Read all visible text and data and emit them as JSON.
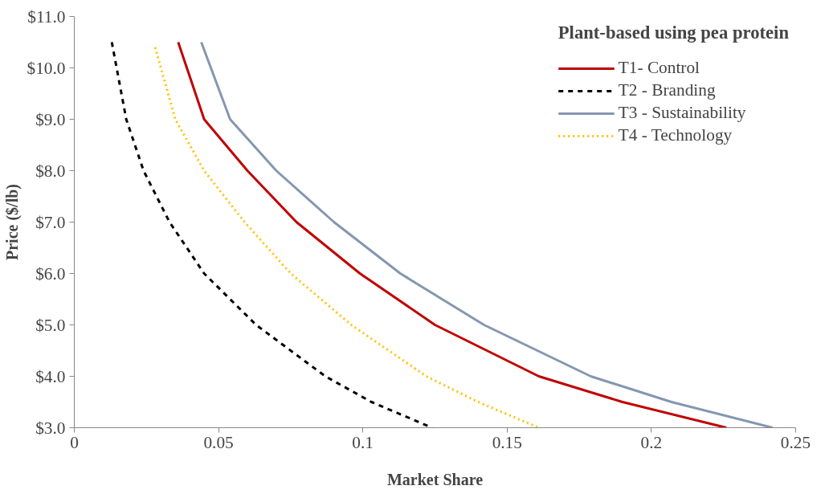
{
  "chart_data": {
    "type": "line",
    "legend_title": "Plant-based using pea protein",
    "xlabel": "Market Share",
    "ylabel": "Price ($/lb)",
    "xlim": [
      0,
      0.25
    ],
    "xticks": [
      0,
      0.05,
      0.1,
      0.15,
      0.2,
      0.25
    ],
    "ylim": [
      3,
      11
    ],
    "yticks": [
      {
        "value": 3,
        "label": "$3.0"
      },
      {
        "value": 4,
        "label": "$4.0"
      },
      {
        "value": 5,
        "label": "$5.0"
      },
      {
        "value": 6,
        "label": "$6.0"
      },
      {
        "value": 7,
        "label": "$7.0"
      },
      {
        "value": 8,
        "label": "$8.0"
      },
      {
        "value": 9,
        "label": "$9.0"
      },
      {
        "value": 10,
        "label": "$10.0"
      },
      {
        "value": 11,
        "label": "$11.0"
      }
    ],
    "grid": false,
    "legend": "top right",
    "marker": "none",
    "series": [
      {
        "name": "T1- Control",
        "color": "#c00000",
        "line_style": "solid",
        "x": [
          0.036,
          0.045,
          0.06,
          0.077,
          0.099,
          0.125,
          0.161,
          0.19,
          0.226
        ],
        "values": [
          10.5,
          9,
          8,
          7,
          6,
          5,
          4,
          3.5,
          3
        ]
      },
      {
        "name": "T2 - Branding",
        "color": "#000000",
        "line_style": "dashed",
        "x": [
          0.013,
          0.018,
          0.024,
          0.033,
          0.045,
          0.063,
          0.087,
          0.103,
          0.124
        ],
        "values": [
          10.5,
          9,
          8,
          7,
          6,
          5,
          4,
          3.5,
          3
        ]
      },
      {
        "name": "T3 - Sustainability",
        "color": "#8497b0",
        "line_style": "solid",
        "x": [
          0.044,
          0.054,
          0.07,
          0.09,
          0.113,
          0.142,
          0.179,
          0.207,
          0.242
        ],
        "values": [
          10.5,
          9,
          8,
          7,
          6,
          5,
          4,
          3.5,
          3
        ]
      },
      {
        "name": "T4 - Technology",
        "color": "#ffc000",
        "line_style": "dotted",
        "x": [
          0.028,
          0.035,
          0.045,
          0.059,
          0.075,
          0.096,
          0.122,
          0.14,
          0.161
        ],
        "values": [
          10.4,
          9,
          8,
          7,
          6,
          5,
          4,
          3.5,
          3
        ]
      }
    ]
  }
}
